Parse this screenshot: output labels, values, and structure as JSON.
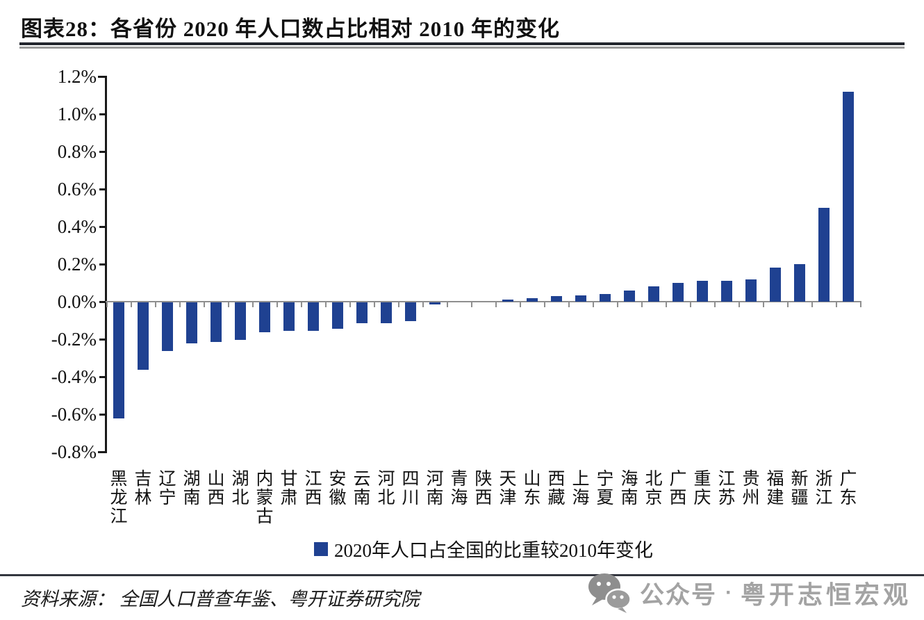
{
  "header": {
    "title": "图表28：各省份 2020 年人口数占比相对 2010 年的变化"
  },
  "chart_data": {
    "type": "bar",
    "title": "各省份 2020 年人口数占比相对 2010 年的变化",
    "legend": "2020年人口占全国的比重较2010年变化",
    "legend_position": "bottom",
    "xlabel": "",
    "ylabel": "",
    "unit": "%",
    "grid": false,
    "ylim": [
      -0.8,
      1.2
    ],
    "ytick_step": 0.2,
    "ytick_labels": [
      "1.2%",
      "1.0%",
      "0.8%",
      "0.6%",
      "0.4%",
      "0.2%",
      "0.0%",
      "-0.2%",
      "-0.4%",
      "-0.6%",
      "-0.8%"
    ],
    "categories": [
      "黑龙江",
      "吉林",
      "辽宁",
      "湖南",
      "山西",
      "湖北",
      "内蒙古",
      "甘肃",
      "江西",
      "安徽",
      "云南",
      "河北",
      "四川",
      "河南",
      "青海",
      "陕西",
      "天津",
      "山东",
      "西藏",
      "上海",
      "宁夏",
      "海南",
      "北京",
      "广西",
      "重庆",
      "江苏",
      "贵州",
      "福建",
      "新疆",
      "浙江",
      "广东"
    ],
    "values": [
      -0.62,
      -0.36,
      -0.26,
      -0.22,
      -0.21,
      -0.2,
      -0.16,
      -0.15,
      -0.15,
      -0.14,
      -0.11,
      -0.11,
      -0.1,
      -0.01,
      0.0,
      0.0,
      0.01,
      0.02,
      0.03,
      0.035,
      0.04,
      0.06,
      0.08,
      0.1,
      0.11,
      0.11,
      0.12,
      0.18,
      0.2,
      0.5,
      1.12
    ],
    "bar_color": "#1F4191",
    "axis_color": "#1a1a1a",
    "zero_line_color": "#8f8f8f"
  },
  "footer": {
    "source": "资料来源： 全国人口普查年鉴、粤开证券研究院"
  },
  "watermark": {
    "icon": "wechat-icon",
    "account_label": "公众号",
    "separator": "·",
    "account_name": "粤开志恒宏观"
  }
}
